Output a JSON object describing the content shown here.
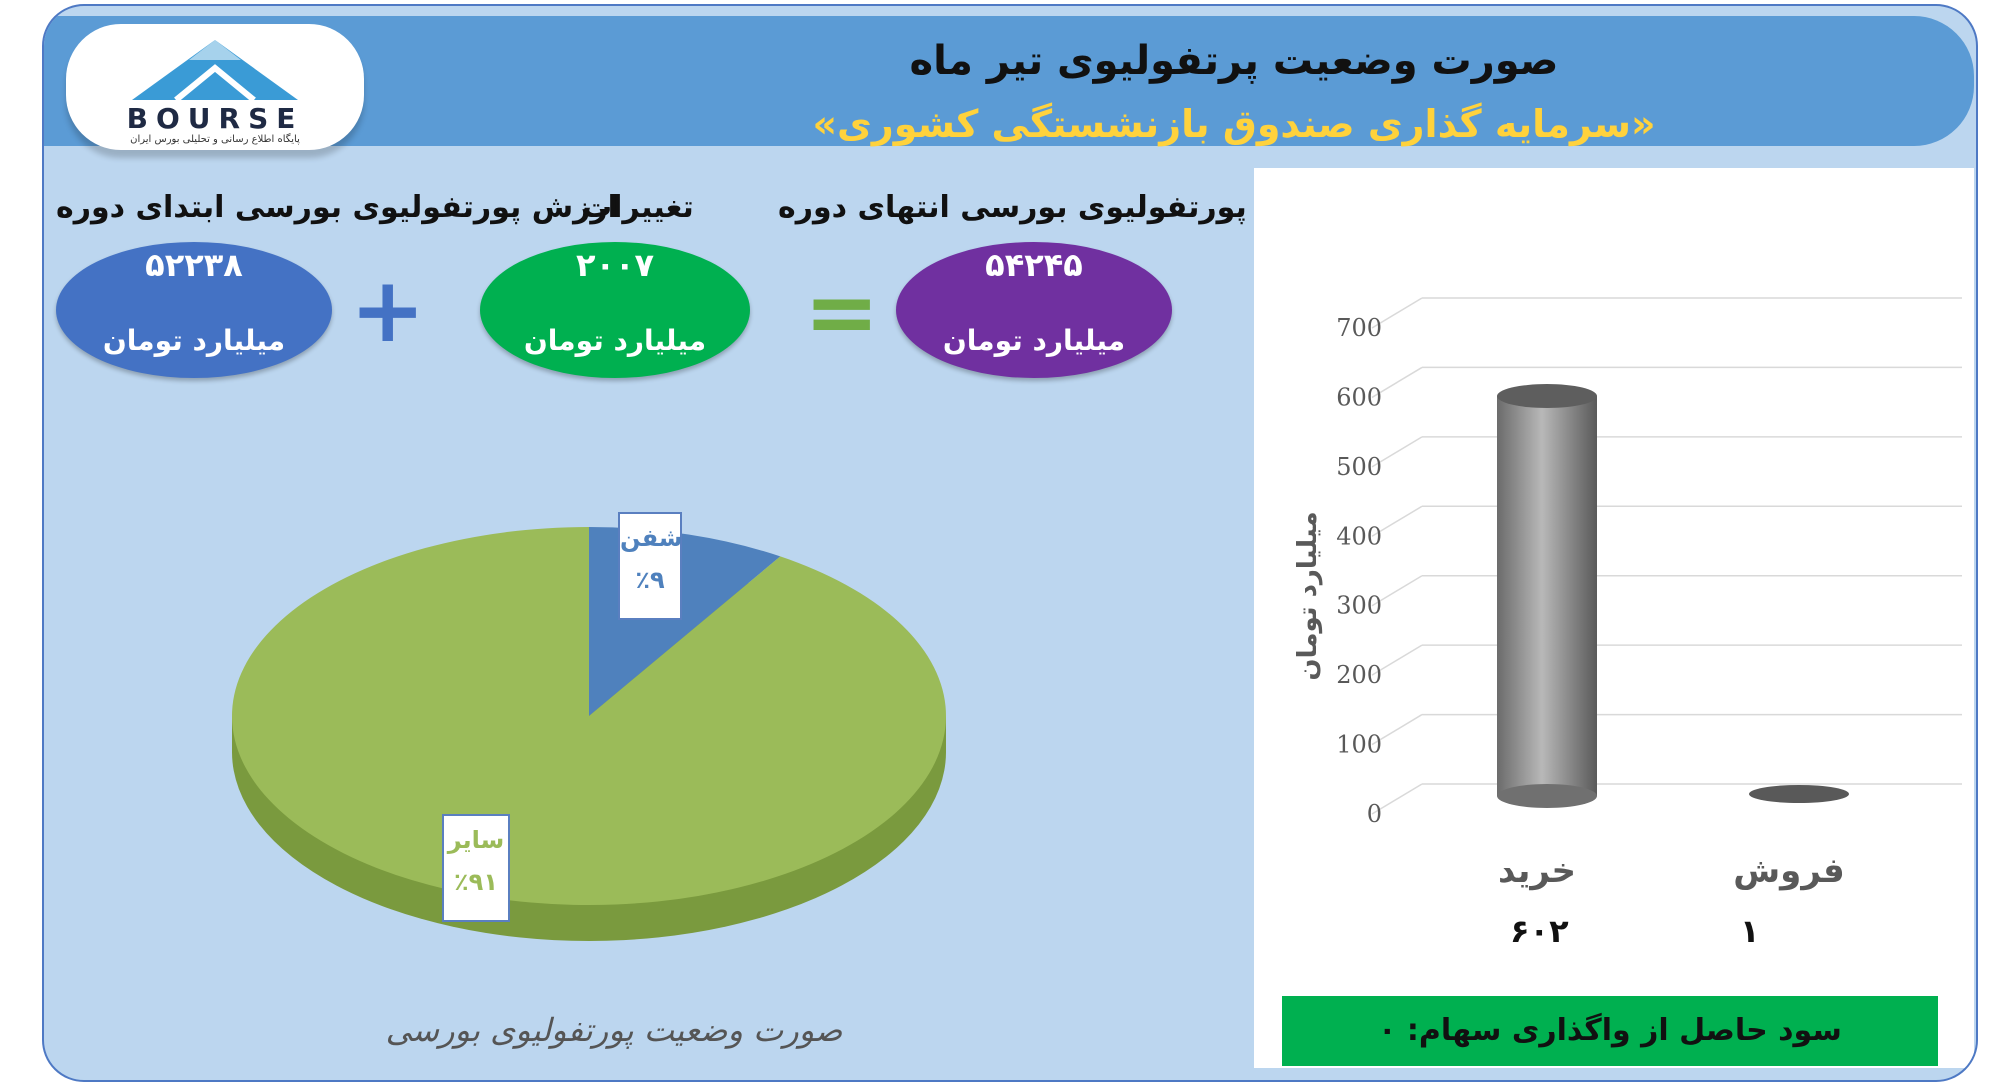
{
  "header": {
    "title": "صورت وضعیت پرتفولیوی تیر ماه",
    "subtitle": "«سرمایه گذاری صندوق بازنشستگی کشوری»",
    "logo_text": "BOURSE",
    "logo_subtext": "پایگاه اطلاع رسانی و تحلیلی بورس ایران"
  },
  "stats": {
    "end": {
      "label": "ارزش پورتفولیوی بورسی انتهای دوره",
      "value": "۵۴۲۴۵",
      "unit": "میلیارد تومان",
      "color": "#7030a0"
    },
    "change": {
      "label": "تغییرات",
      "value": "۲۰۰۷",
      "unit": "میلیارد تومان",
      "color": "#00b050"
    },
    "start": {
      "label": "ارزش پورتفولیوی بورسی ابتدای دوره",
      "value": "۵۲۲۳۸",
      "unit": "میلیارد تومان",
      "color": "#4472c4"
    },
    "plus": "+",
    "equals": "="
  },
  "chart_data": [
    {
      "type": "pie",
      "title": "صورت وضعیت پورتفولیوی بورسی",
      "slices": [
        {
          "name": "شفن",
          "value": 9,
          "label": "٪۹",
          "color": "#4f81bd"
        },
        {
          "name": "سایر",
          "value": 91,
          "label": "٪۹۱",
          "color": "#9bbb59"
        }
      ]
    },
    {
      "type": "bar",
      "categories": [
        "خرید",
        "فروش"
      ],
      "values": [
        602,
        1
      ],
      "value_labels": [
        "۶۰۲",
        "۱"
      ],
      "ylabel": "میلیارد تومان",
      "ylim": [
        0,
        700
      ],
      "yticks": [
        0,
        100,
        200,
        300,
        400,
        500,
        600,
        700
      ],
      "grid": true,
      "bar_color": "#808080"
    }
  ],
  "footer": {
    "profit_label": "سود حاصل از واگذاری سهام: ۰"
  }
}
